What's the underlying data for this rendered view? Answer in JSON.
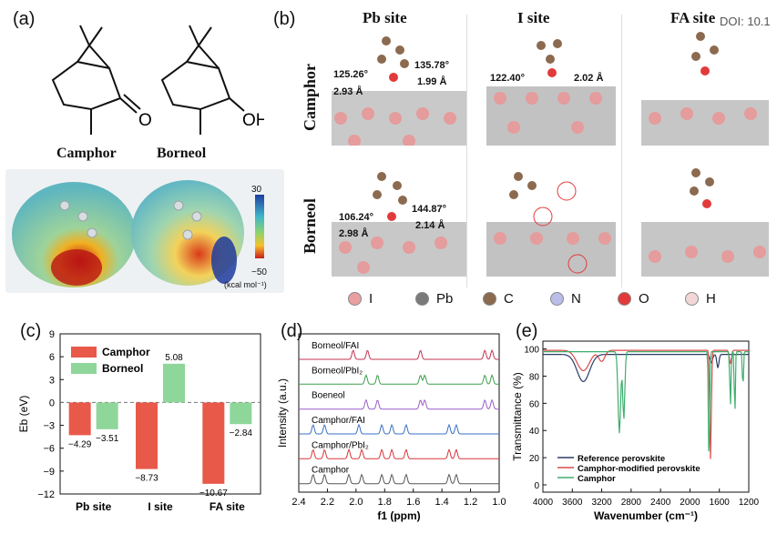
{
  "doi": "DOI: 10.1",
  "panel_a": {
    "label": "(a)",
    "mol1": "Camphor",
    "mol2": "Borneol",
    "ketone_o": "O",
    "alcohol": "OH",
    "esp": {
      "max": "30",
      "min": "−50",
      "unit": "(kcal mol⁻¹)"
    }
  },
  "panel_b": {
    "label": "(b)",
    "cols": [
      "Pb site",
      "I site",
      "FA site"
    ],
    "rows": [
      "Camphor",
      "Borneol"
    ],
    "annotations": {
      "cam_pb": [
        "125.26°",
        "135.78°",
        "1.99 Å",
        "2.93 Å"
      ],
      "cam_i": [
        "122.40°",
        "2.02 Å"
      ],
      "bor_pb": [
        "106.24°",
        "144.87°",
        "2.14 Å",
        "2.98 Å"
      ]
    },
    "legend": [
      {
        "label": "I",
        "color": "#e9a0a0"
      },
      {
        "label": "Pb",
        "color": "#7a7a7a"
      },
      {
        "label": "C",
        "color": "#8b6a4f"
      },
      {
        "label": "N",
        "color": "#b9bde8"
      },
      {
        "label": "O",
        "color": "#e23a3a"
      },
      {
        "label": "H",
        "color": "#f3d7d7"
      }
    ]
  },
  "panel_c": {
    "label": "(c)"
  },
  "panel_d": {
    "label": "(d)"
  },
  "panel_e": {
    "label": "(e)"
  },
  "chart_data": [
    {
      "type": "bar",
      "ylabel": "Eb (eV)",
      "categories": [
        "Pb site",
        "I site",
        "FA site"
      ],
      "series": [
        {
          "name": "Camphor",
          "values": [
            -4.29,
            -8.73,
            -10.67
          ],
          "color": "#e8594a"
        },
        {
          "name": "Borneol",
          "values": [
            -3.51,
            5.08,
            -2.84
          ],
          "color": "#8fd69a"
        }
      ],
      "value_labels": [
        [
          "−4.29",
          "−8.73",
          "−10.67"
        ],
        [
          "−3.51",
          "5.08",
          "−2.84"
        ]
      ],
      "ylim": [
        -12,
        9
      ],
      "yticks": [
        "9",
        "6",
        "3",
        "0",
        "−3",
        "−6",
        "−9",
        "−12"
      ],
      "ytick_values": [
        9,
        6,
        3,
        0,
        -3,
        -6,
        -9,
        -12
      ],
      "legend": "top-left"
    },
    {
      "type": "line",
      "xlabel": "f1 (ppm)",
      "ylabel": "Intensity (a.u.)",
      "xlim": [
        2.4,
        1.0
      ],
      "xticks": [
        "2.4",
        "2.2",
        "2.0",
        "1.8",
        "1.6",
        "1.4",
        "1.2",
        "1.0"
      ],
      "xtick_values": [
        2.4,
        2.2,
        2.0,
        1.8,
        1.6,
        1.4,
        1.2,
        1.0
      ],
      "traces": [
        {
          "name": "Borneol/FAI",
          "color": "#c2334f"
        },
        {
          "name": "Borneol/PbI₂",
          "color": "#3c9e4a"
        },
        {
          "name": "Boeneol",
          "color": "#9b5ec9"
        },
        {
          "name": "Camphor/FAI",
          "color": "#3a6fc4"
        },
        {
          "name": "Camphor/PbI₂",
          "color": "#d8353a"
        },
        {
          "name": "Camphor",
          "color": "#555555"
        }
      ]
    },
    {
      "type": "line",
      "xlabel": "Wavenumber (cm⁻¹)",
      "ylabel": "Transmittance (%)",
      "xlim": [
        4000,
        1200
      ],
      "ylim": [
        0,
        100
      ],
      "xticks": [
        "4000",
        "3600",
        "3200",
        "2800",
        "2400",
        "2000",
        "1600",
        "1200"
      ],
      "xtick_values": [
        4000,
        3600,
        3200,
        2800,
        2400,
        2000,
        1600,
        1200
      ],
      "yticks": [
        "100",
        "80",
        "60",
        "40",
        "20",
        "0"
      ],
      "ytick_values": [
        100,
        80,
        60,
        40,
        20,
        0
      ],
      "series": [
        {
          "name": "Reference perovskite",
          "color": "#2a3d66"
        },
        {
          "name": "Camphor-modified perovskite",
          "color": "#d94a48"
        },
        {
          "name": "Camphor",
          "color": "#3fae6d"
        }
      ],
      "legend": "bottom-center"
    }
  ]
}
